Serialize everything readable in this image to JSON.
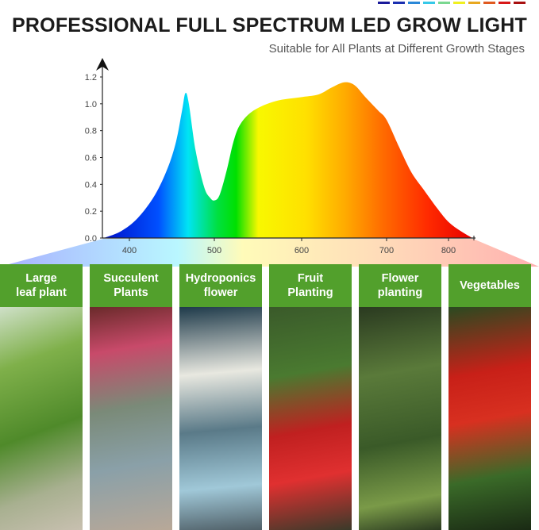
{
  "header": {
    "title": "PROFESSIONAL FULL SPECTRUM LED GROW LIGHT",
    "subtitle": "Suitable for All Plants at Different Growth Stages",
    "color_bar": [
      "#1a1a9a",
      "#1a2fb0",
      "#2a88d8",
      "#36c8e8",
      "#7ad890",
      "#f0f020",
      "#e8a820",
      "#e05a20",
      "#d81818",
      "#a81010"
    ]
  },
  "chart_data": {
    "type": "area",
    "title": "",
    "xlabel": "",
    "ylabel": "",
    "x_ticks": [
      400,
      500,
      600,
      700,
      800
    ],
    "y_ticks": [
      "0.0",
      "0.2",
      "0.4",
      "0.6",
      "0.8",
      "1.0",
      "1.2"
    ],
    "ylim": [
      0,
      1.2
    ],
    "grid": false,
    "fill": "visible-spectrum gradient",
    "x": [
      370,
      390,
      410,
      430,
      445,
      455,
      462,
      466,
      470,
      478,
      488,
      495,
      500,
      506,
      514,
      522,
      530,
      545,
      570,
      600,
      620,
      635,
      650,
      662,
      675,
      690,
      700,
      720,
      740,
      760,
      782,
      800,
      820,
      838
    ],
    "y": [
      0.0,
      0.05,
      0.15,
      0.32,
      0.52,
      0.72,
      0.95,
      1.08,
      1.0,
      0.65,
      0.38,
      0.3,
      0.28,
      0.32,
      0.5,
      0.72,
      0.85,
      0.95,
      1.02,
      1.05,
      1.07,
      1.12,
      1.16,
      1.14,
      1.05,
      0.95,
      0.88,
      0.68,
      0.49,
      0.36,
      0.22,
      0.12,
      0.05,
      0.0
    ]
  },
  "panels": [
    {
      "label_line1": "Large",
      "label_line2": "leaf plant",
      "photo": "leafy green seedlings in pebbles"
    },
    {
      "label_line1": "Succulent",
      "label_line2": "Plants",
      "photo": "succulents with pink flower"
    },
    {
      "label_line1": "Hydroponics",
      "label_line2": "flower",
      "photo": "white flowers in glass vase"
    },
    {
      "label_line1": "Fruit",
      "label_line2": "Planting",
      "photo": "strawberries"
    },
    {
      "label_line1": "Flower",
      "label_line2": "planting",
      "photo": "purple flower stalk"
    },
    {
      "label_line1": "Vegetables",
      "label_line2": "",
      "photo": "cherry tomatoes"
    }
  ]
}
